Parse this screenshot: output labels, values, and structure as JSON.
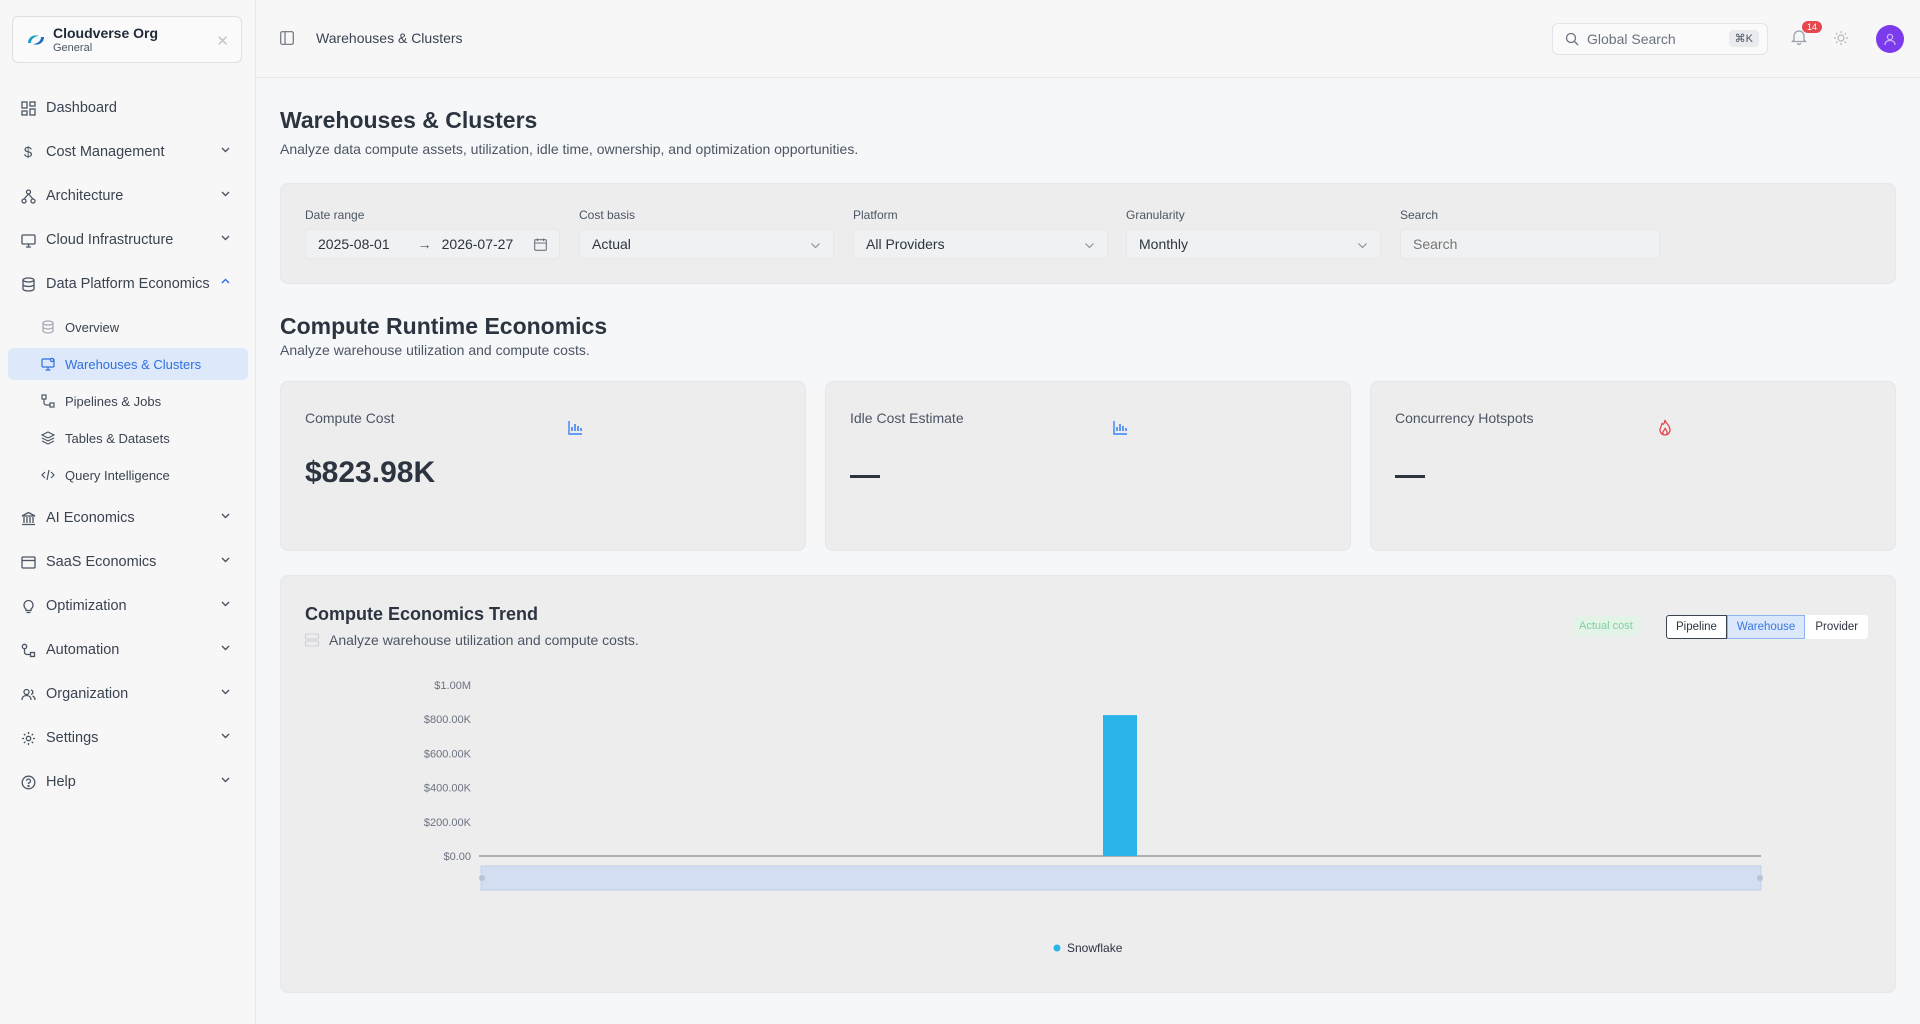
{
  "org": {
    "name": "Cloudverse Org",
    "sub": "General"
  },
  "sidebar": {
    "items": [
      {
        "label": "Dashboard"
      },
      {
        "label": "Cost Management"
      },
      {
        "label": "Architecture"
      },
      {
        "label": "Cloud Infrastructure"
      },
      {
        "label": "Data Platform Economics"
      },
      {
        "label": "AI Economics"
      },
      {
        "label": "SaaS Economics"
      },
      {
        "label": "Optimization"
      },
      {
        "label": "Automation"
      },
      {
        "label": "Organization"
      },
      {
        "label": "Settings"
      },
      {
        "label": "Help"
      }
    ],
    "sub_items": [
      {
        "label": "Overview"
      },
      {
        "label": "Warehouses & Clusters"
      },
      {
        "label": "Pipelines & Jobs"
      },
      {
        "label": "Tables & Datasets"
      },
      {
        "label": "Query Intelligence"
      }
    ]
  },
  "header": {
    "breadcrumb": "Warehouses & Clusters",
    "search_placeholder": "Global Search",
    "search_shortcut": "⌘K",
    "notification_count": "14"
  },
  "page": {
    "title": "Warehouses & Clusters",
    "subtitle": "Analyze data compute assets, utilization, idle time, ownership, and optimization opportunities."
  },
  "filters": {
    "date_range_label": "Date range",
    "date_start": "2025-08-01",
    "date_arrow": "→",
    "date_end": "2026-07-27",
    "cost_basis_label": "Cost basis",
    "cost_basis_value": "Actual",
    "platform_label": "Platform",
    "platform_value": "All Providers",
    "granularity_label": "Granularity",
    "granularity_value": "Monthly",
    "search_label": "Search",
    "search_placeholder": "Search"
  },
  "section": {
    "title": "Compute Runtime Economics",
    "subtitle": "Analyze warehouse utilization and compute costs."
  },
  "kpis": [
    {
      "label": "Compute Cost",
      "value": "$823.98K",
      "icon": "bar-chart-icon"
    },
    {
      "label": "Idle Cost Estimate",
      "value": "",
      "icon": "bar-chart-icon"
    },
    {
      "label": "Concurrency Hotspots",
      "value": "",
      "icon": "flame-icon"
    }
  ],
  "trend": {
    "title": "Compute Economics Trend",
    "subtitle": "Analyze warehouse utilization and compute costs.",
    "actual_tag": "Actual cost",
    "group_by": [
      "Pipeline",
      "Warehouse",
      "Provider"
    ],
    "group_by_active": "Warehouse"
  },
  "chart_data": {
    "type": "bar",
    "categories": [
      "",
      "",
      "",
      "",
      "",
      "",
      "",
      "",
      "",
      "",
      "",
      "",
      ""
    ],
    "series": [
      {
        "name": "Snowflake",
        "color": "#2ab4e8",
        "values": [
          0,
          0,
          0,
          0,
          0,
          0,
          823980,
          0,
          0,
          0,
          0,
          0,
          0
        ]
      }
    ],
    "yticks": [
      "$0.00",
      "$200.00K",
      "$400.00K",
      "$600.00K",
      "$800.00K",
      "$1.00M"
    ],
    "ylim": [
      0,
      1000000
    ],
    "legend": "bottom-center"
  },
  "colors": {
    "accent": "#2f6fde",
    "bar": "#2ab4e8",
    "danger": "#e5484d",
    "avatar": "#7c3aed"
  }
}
